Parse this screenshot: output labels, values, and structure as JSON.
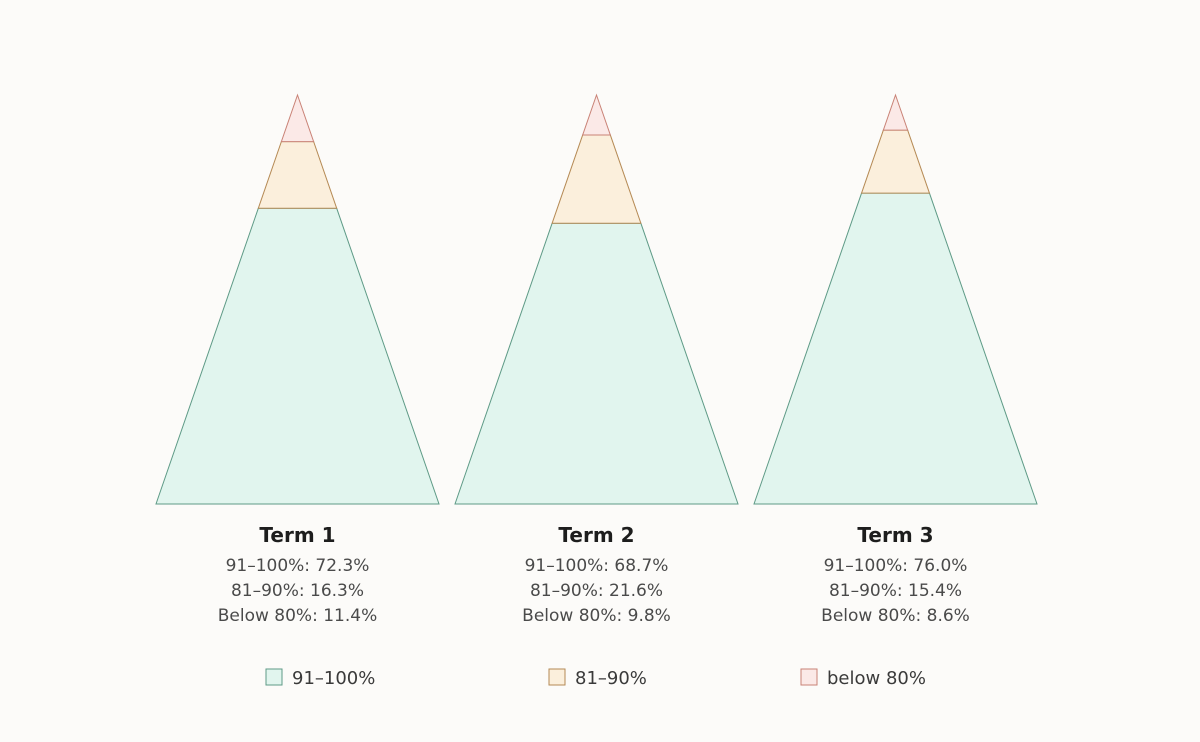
{
  "chart_data": {
    "type": "pyramid",
    "series": [
      {
        "key": "top",
        "name": "91–100%",
        "stat_label": "91–100%",
        "color": "#e1f5ee",
        "stroke": "#5e9a86"
      },
      {
        "key": "mid",
        "name": "81–90%",
        "stat_label": "81–90%",
        "color": "#fbefdc",
        "stroke": "#b58a55"
      },
      {
        "key": "low",
        "name": "below 80%",
        "stat_label": "Below 80%",
        "color": "#fbe9e7",
        "stroke": "#c98276"
      }
    ],
    "terms": [
      {
        "label": "Term 1",
        "values": [
          72.3,
          16.3,
          11.4
        ]
      },
      {
        "label": "Term 2",
        "values": [
          68.7,
          21.6,
          9.8
        ]
      },
      {
        "label": "Term 3",
        "values": [
          76.0,
          15.4,
          8.6
        ]
      }
    ],
    "unit": "%",
    "legend": {
      "position": "bottom"
    }
  }
}
